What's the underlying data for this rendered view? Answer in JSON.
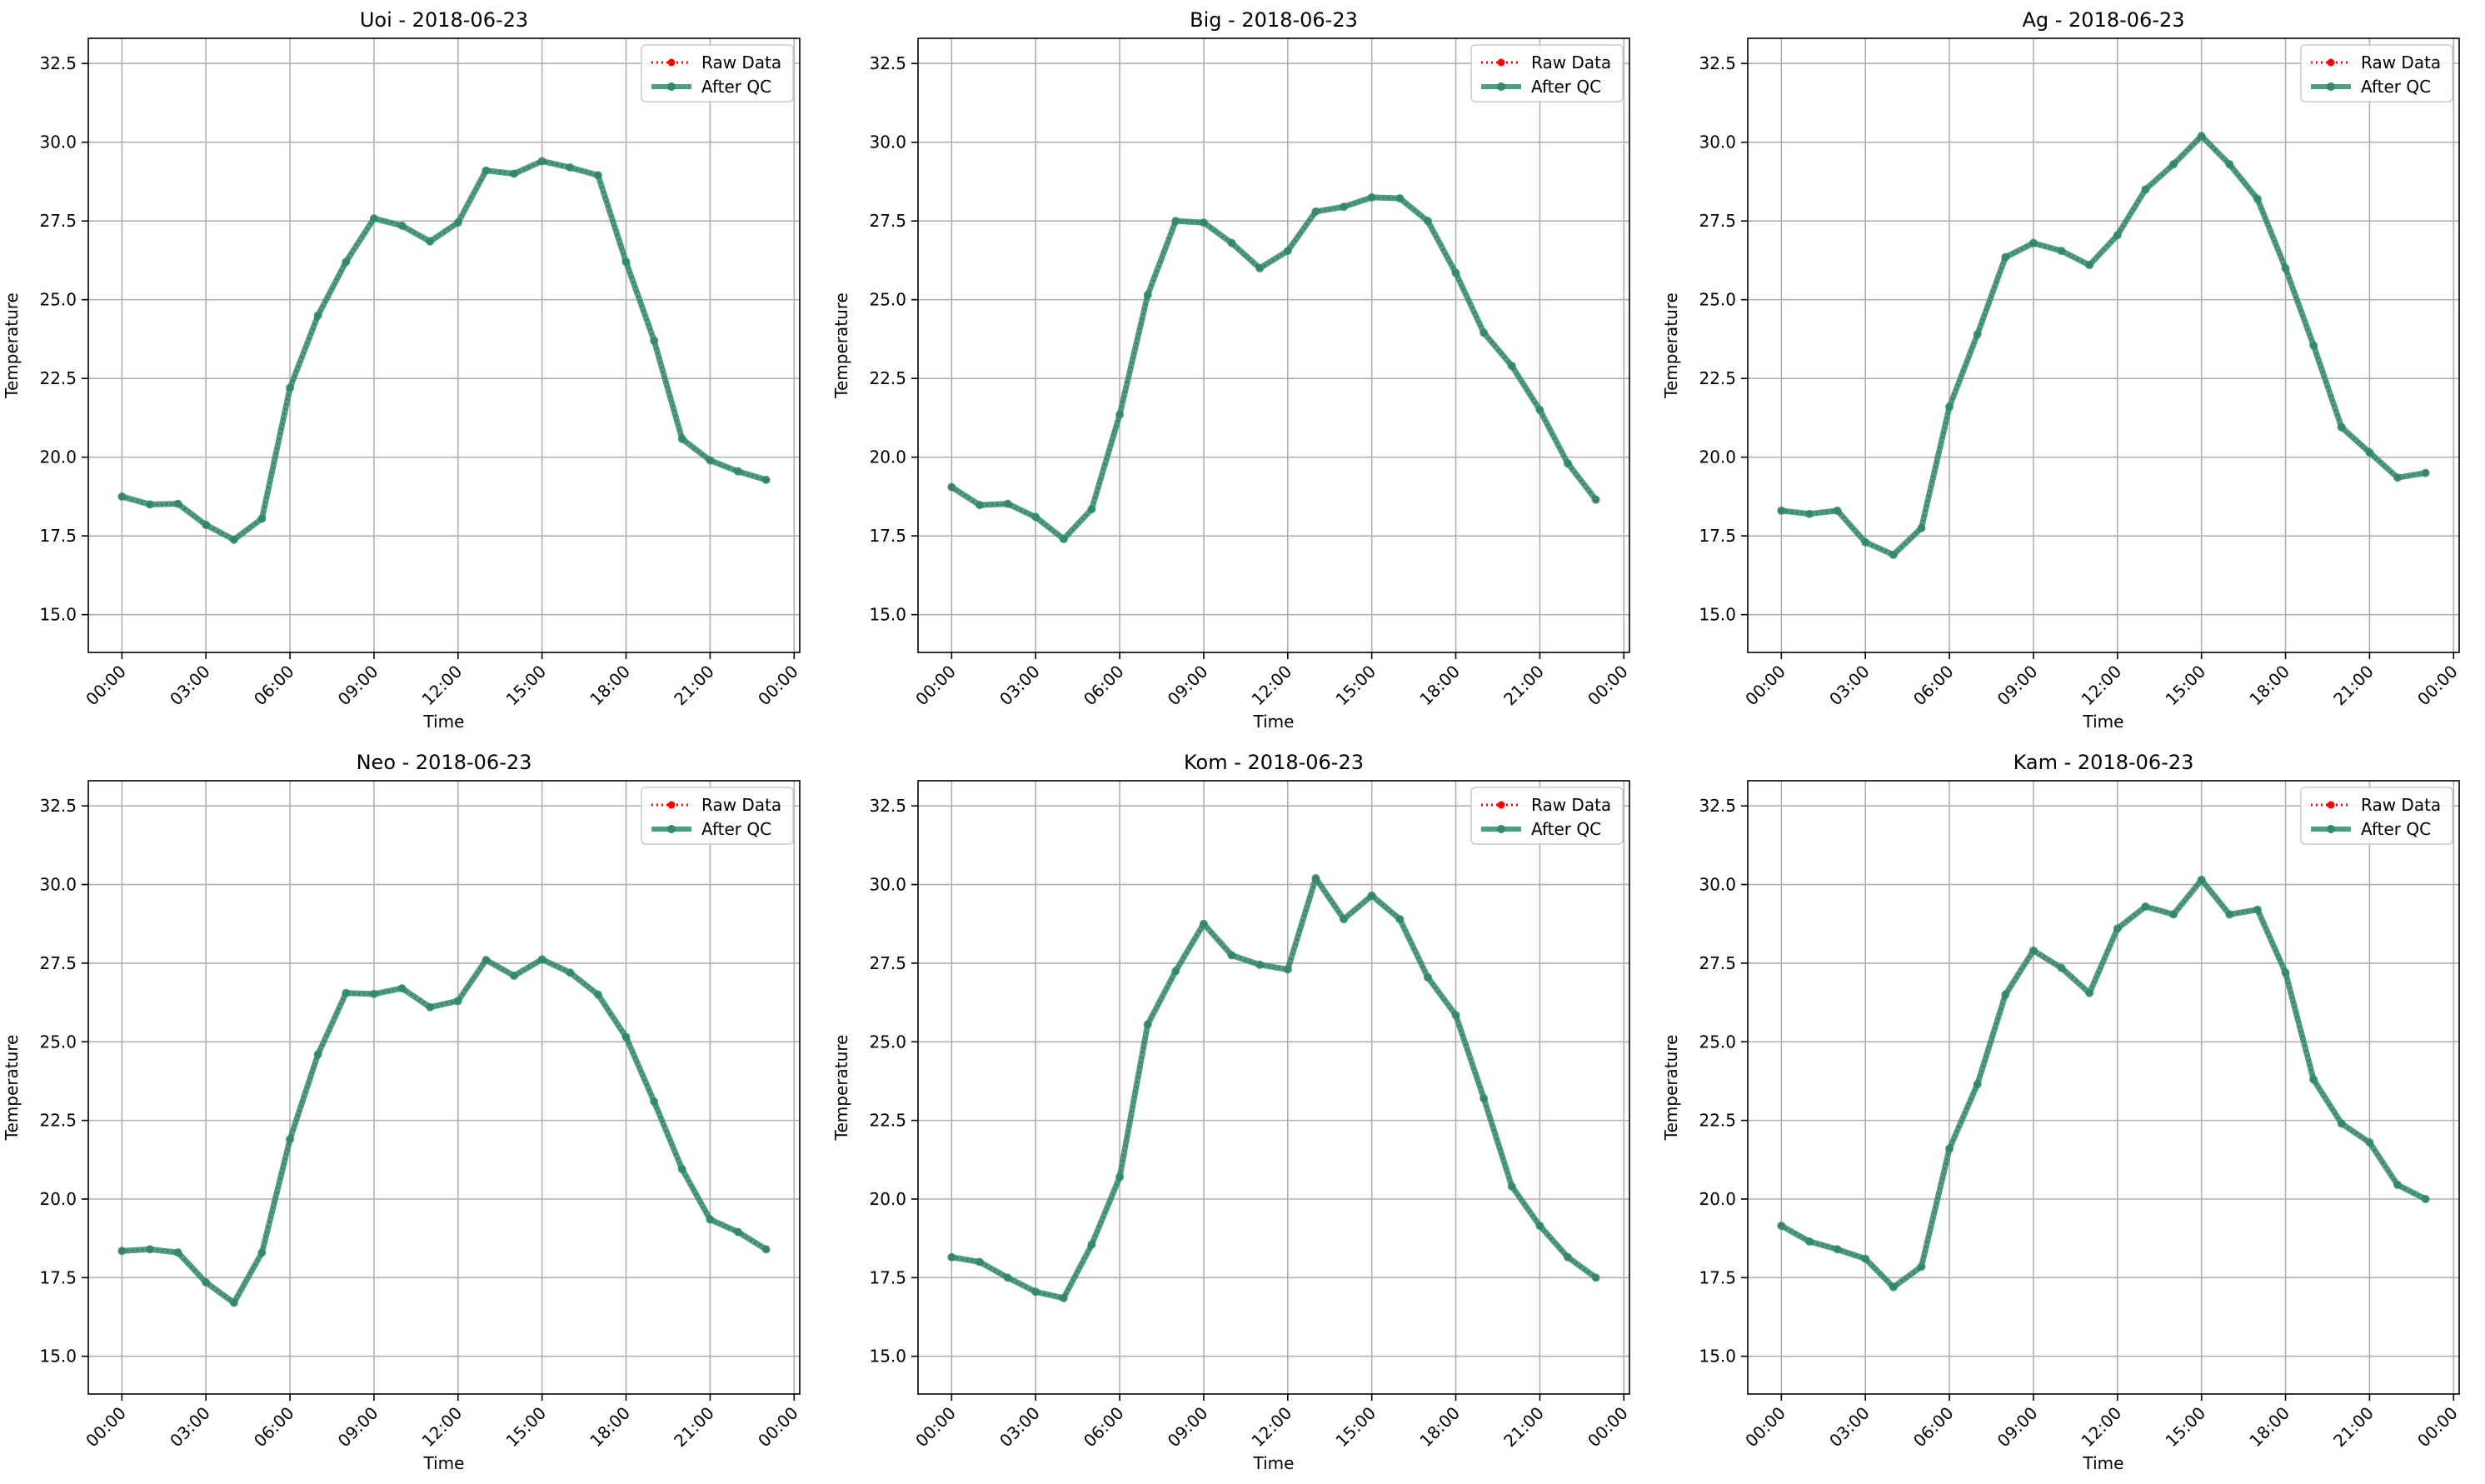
{
  "figure": {
    "legend_raw": "Raw Data",
    "legend_qc": "After QC",
    "colors": {
      "raw": "#ff0000",
      "qc": "#2e8b6e",
      "grid": "#b0b0b0"
    }
  },
  "chart_data": [
    {
      "type": "line",
      "title": "Uoi - 2018-06-23",
      "xlabel": "Time",
      "ylabel": "Temperature",
      "ylim": [
        13.8,
        33.3
      ],
      "yticks": [
        "15.0",
        "17.5",
        "20.0",
        "22.5",
        "25.0",
        "27.5",
        "30.0",
        "32.5"
      ],
      "xticks": [
        "00:00",
        "03:00",
        "06:00",
        "09:00",
        "12:00",
        "15:00",
        "18:00",
        "21:00",
        "00:00"
      ],
      "xlim_hours": [
        -1.2,
        24.2
      ],
      "x_hours": [
        0,
        1,
        2,
        3,
        4,
        5,
        6,
        7,
        8,
        9,
        10,
        11,
        12,
        13,
        14,
        15,
        16,
        17,
        18,
        19,
        20,
        21,
        22,
        23
      ],
      "grid": true,
      "legend_position": "top-right",
      "series": [
        {
          "name": "Raw Data",
          "values": [
            18.75,
            18.5,
            18.52,
            17.85,
            17.38,
            18.05,
            22.2,
            24.5,
            26.2,
            27.58,
            27.35,
            26.85,
            27.45,
            29.1,
            29.0,
            29.4,
            29.2,
            28.95,
            26.2,
            23.7,
            20.58,
            19.9,
            19.55,
            19.28
          ]
        },
        {
          "name": "After QC",
          "values": [
            18.75,
            18.5,
            18.52,
            17.85,
            17.38,
            18.05,
            22.2,
            24.5,
            26.2,
            27.58,
            27.35,
            26.85,
            27.45,
            29.1,
            29.0,
            29.4,
            29.2,
            28.95,
            26.2,
            23.7,
            20.58,
            19.9,
            19.55,
            19.28
          ]
        }
      ]
    },
    {
      "type": "line",
      "title": "Big - 2018-06-23",
      "xlabel": "Time",
      "ylabel": "Temperature",
      "ylim": [
        13.8,
        33.3
      ],
      "yticks": [
        "15.0",
        "17.5",
        "20.0",
        "22.5",
        "25.0",
        "27.5",
        "30.0",
        "32.5"
      ],
      "xticks": [
        "00:00",
        "03:00",
        "06:00",
        "09:00",
        "12:00",
        "15:00",
        "18:00",
        "21:00",
        "00:00"
      ],
      "xlim_hours": [
        -1.2,
        24.2
      ],
      "x_hours": [
        0,
        1,
        2,
        3,
        4,
        5,
        6,
        7,
        8,
        9,
        10,
        11,
        12,
        13,
        14,
        15,
        16,
        17,
        18,
        19,
        20,
        21,
        22,
        23
      ],
      "grid": true,
      "legend_position": "top-right",
      "series": [
        {
          "name": "Raw Data",
          "values": [
            19.05,
            18.48,
            18.52,
            18.1,
            17.4,
            18.35,
            21.35,
            25.15,
            27.5,
            27.45,
            26.8,
            26.0,
            26.55,
            27.8,
            27.95,
            28.25,
            28.22,
            27.5,
            25.85,
            23.95,
            22.9,
            21.5,
            19.8,
            18.65
          ]
        },
        {
          "name": "After QC",
          "values": [
            19.05,
            18.48,
            18.52,
            18.1,
            17.4,
            18.35,
            21.35,
            25.15,
            27.5,
            27.45,
            26.8,
            26.0,
            26.55,
            27.8,
            27.95,
            28.25,
            28.22,
            27.5,
            25.85,
            23.95,
            22.9,
            21.5,
            19.8,
            18.65
          ]
        }
      ]
    },
    {
      "type": "line",
      "title": "Ag - 2018-06-23",
      "xlabel": "Time",
      "ylabel": "Temperature",
      "ylim": [
        13.8,
        33.3
      ],
      "yticks": [
        "15.0",
        "17.5",
        "20.0",
        "22.5",
        "25.0",
        "27.5",
        "30.0",
        "32.5"
      ],
      "xticks": [
        "00:00",
        "03:00",
        "06:00",
        "09:00",
        "12:00",
        "15:00",
        "18:00",
        "21:00",
        "00:00"
      ],
      "xlim_hours": [
        -1.2,
        24.2
      ],
      "x_hours": [
        0,
        1,
        2,
        3,
        4,
        5,
        6,
        7,
        8,
        9,
        10,
        11,
        12,
        13,
        14,
        15,
        16,
        17,
        18,
        19,
        20,
        21,
        22,
        23
      ],
      "grid": true,
      "legend_position": "top-right",
      "series": [
        {
          "name": "Raw Data",
          "values": [
            18.3,
            18.2,
            18.3,
            17.3,
            16.9,
            17.75,
            21.6,
            23.9,
            26.35,
            26.8,
            26.55,
            26.1,
            27.05,
            28.5,
            29.3,
            30.2,
            29.3,
            28.2,
            26.0,
            23.55,
            20.95,
            20.15,
            19.35,
            19.5
          ]
        },
        {
          "name": "After QC",
          "values": [
            18.3,
            18.2,
            18.3,
            17.3,
            16.9,
            17.75,
            21.6,
            23.9,
            26.35,
            26.8,
            26.55,
            26.1,
            27.05,
            28.5,
            29.3,
            30.2,
            29.3,
            28.2,
            26.0,
            23.55,
            20.95,
            20.15,
            19.35,
            19.5
          ]
        }
      ]
    },
    {
      "type": "line",
      "title": "Neo - 2018-06-23",
      "xlabel": "Time",
      "ylabel": "Temperature",
      "ylim": [
        13.8,
        33.3
      ],
      "yticks": [
        "15.0",
        "17.5",
        "20.0",
        "22.5",
        "25.0",
        "27.5",
        "30.0",
        "32.5"
      ],
      "xticks": [
        "00:00",
        "03:00",
        "06:00",
        "09:00",
        "12:00",
        "15:00",
        "18:00",
        "21:00",
        "00:00"
      ],
      "xlim_hours": [
        -1.2,
        24.2
      ],
      "x_hours": [
        0,
        1,
        2,
        3,
        4,
        5,
        6,
        7,
        8,
        9,
        10,
        11,
        12,
        13,
        14,
        15,
        16,
        17,
        18,
        19,
        20,
        21,
        22,
        23
      ],
      "grid": true,
      "legend_position": "top-right",
      "series": [
        {
          "name": "Raw Data",
          "values": [
            18.35,
            18.4,
            18.3,
            17.35,
            16.7,
            18.3,
            21.9,
            24.6,
            26.55,
            26.52,
            26.7,
            26.1,
            26.3,
            27.6,
            27.1,
            27.62,
            27.2,
            26.5,
            25.15,
            23.1,
            20.95,
            19.35,
            18.95,
            18.4
          ]
        },
        {
          "name": "After QC",
          "values": [
            18.35,
            18.4,
            18.3,
            17.35,
            16.7,
            18.3,
            21.9,
            24.6,
            26.55,
            26.52,
            26.7,
            26.1,
            26.3,
            27.6,
            27.1,
            27.62,
            27.2,
            26.5,
            25.15,
            23.1,
            20.95,
            19.35,
            18.95,
            18.4
          ]
        }
      ]
    },
    {
      "type": "line",
      "title": "Kom - 2018-06-23",
      "xlabel": "Time",
      "ylabel": "Temperature",
      "ylim": [
        13.8,
        33.3
      ],
      "yticks": [
        "15.0",
        "17.5",
        "20.0",
        "22.5",
        "25.0",
        "27.5",
        "30.0",
        "32.5"
      ],
      "xticks": [
        "00:00",
        "03:00",
        "06:00",
        "09:00",
        "12:00",
        "15:00",
        "18:00",
        "21:00",
        "00:00"
      ],
      "xlim_hours": [
        -1.2,
        24.2
      ],
      "x_hours": [
        0,
        1,
        2,
        3,
        4,
        5,
        6,
        7,
        8,
        9,
        10,
        11,
        12,
        13,
        14,
        15,
        16,
        17,
        18,
        19,
        20,
        21,
        22,
        23
      ],
      "grid": true,
      "legend_position": "top-right",
      "series": [
        {
          "name": "Raw Data",
          "values": [
            18.15,
            18.0,
            17.5,
            17.05,
            16.85,
            18.55,
            20.7,
            25.55,
            27.25,
            28.75,
            27.75,
            27.45,
            27.3,
            30.2,
            28.9,
            29.65,
            28.9,
            27.05,
            25.85,
            23.2,
            20.4,
            19.15,
            18.15,
            17.5
          ]
        },
        {
          "name": "After QC",
          "values": [
            18.15,
            18.0,
            17.5,
            17.05,
            16.85,
            18.55,
            20.7,
            25.55,
            27.25,
            28.75,
            27.75,
            27.45,
            27.3,
            30.2,
            28.9,
            29.65,
            28.9,
            27.05,
            25.85,
            23.2,
            20.4,
            19.15,
            18.15,
            17.5
          ]
        }
      ]
    },
    {
      "type": "line",
      "title": "Kam - 2018-06-23",
      "xlabel": "Time",
      "ylabel": "Temperature",
      "ylim": [
        13.8,
        33.3
      ],
      "yticks": [
        "15.0",
        "17.5",
        "20.0",
        "22.5",
        "25.0",
        "27.5",
        "30.0",
        "32.5"
      ],
      "xticks": [
        "00:00",
        "03:00",
        "06:00",
        "09:00",
        "12:00",
        "15:00",
        "18:00",
        "21:00",
        "00:00"
      ],
      "xlim_hours": [
        -1.2,
        24.2
      ],
      "x_hours": [
        0,
        1,
        2,
        3,
        4,
        5,
        6,
        7,
        8,
        9,
        10,
        11,
        12,
        13,
        14,
        15,
        16,
        17,
        18,
        19,
        20,
        21,
        22,
        23
      ],
      "grid": true,
      "legend_position": "top-right",
      "series": [
        {
          "name": "Raw Data",
          "values": [
            19.15,
            18.65,
            18.4,
            18.1,
            17.2,
            17.85,
            21.6,
            23.65,
            26.5,
            27.9,
            27.35,
            26.55,
            28.6,
            29.3,
            29.05,
            30.15,
            29.05,
            29.2,
            27.2,
            23.8,
            22.4,
            21.8,
            20.45,
            20.0
          ]
        },
        {
          "name": "After QC",
          "values": [
            19.15,
            18.65,
            18.4,
            18.1,
            17.2,
            17.85,
            21.6,
            23.65,
            26.5,
            27.9,
            27.35,
            26.55,
            28.6,
            29.3,
            29.05,
            30.15,
            29.05,
            29.2,
            27.2,
            23.8,
            22.4,
            21.8,
            20.45,
            20.0
          ]
        }
      ]
    }
  ]
}
